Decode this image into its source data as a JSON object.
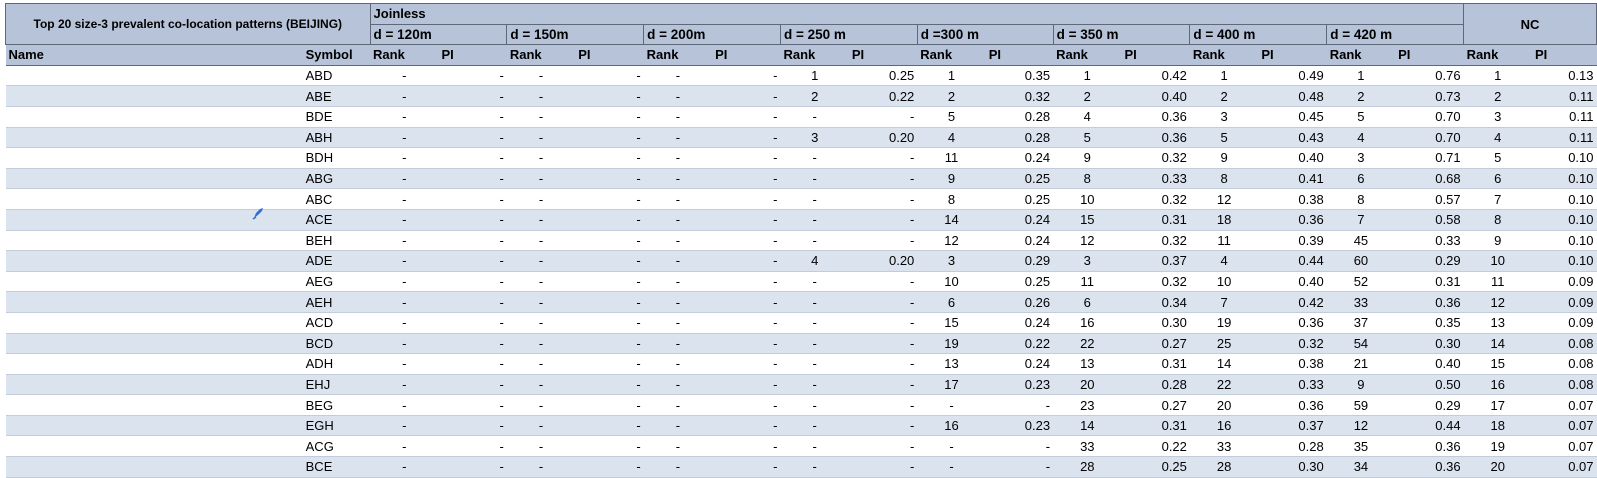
{
  "title": "Top 20 size-3 prevalent co-location patterns (BEIJING)",
  "group_joinless": "Joinless",
  "group_nc": "NC",
  "distances": [
    "d = 120m",
    "d = 150m",
    "d = 200m",
    "d = 250 m",
    "d =300 m",
    "d = 350 m",
    "d = 400 m",
    "d = 420 m"
  ],
  "col_name": "Name",
  "col_symbol": "Symbol",
  "col_rank": "Rank",
  "col_pi": "PI",
  "colors": {
    "header_bg": "#b6c3d8",
    "band_bg": "#dbe3ef",
    "border": "#5e6878",
    "pen_icon": "#2f6fd6"
  },
  "rows": [
    {
      "symbol": "ABD",
      "v": [
        "-",
        "-",
        "-",
        "-",
        "-",
        "-",
        "1",
        "0.25",
        "1",
        "0.35",
        "1",
        "0.42",
        "1",
        "0.49",
        "1",
        "0.76",
        "1",
        "0.13"
      ]
    },
    {
      "symbol": "ABE",
      "v": [
        "-",
        "-",
        "-",
        "-",
        "-",
        "-",
        "2",
        "0.22",
        "2",
        "0.32",
        "2",
        "0.40",
        "2",
        "0.48",
        "2",
        "0.73",
        "2",
        "0.11"
      ]
    },
    {
      "symbol": "BDE",
      "v": [
        "-",
        "-",
        "-",
        "-",
        "-",
        "-",
        "-",
        "-",
        "5",
        "0.28",
        "4",
        "0.36",
        "3",
        "0.45",
        "5",
        "0.70",
        "3",
        "0.11"
      ]
    },
    {
      "symbol": "ABH",
      "v": [
        "-",
        "-",
        "-",
        "-",
        "-",
        "-",
        "3",
        "0.20",
        "4",
        "0.28",
        "5",
        "0.36",
        "5",
        "0.43",
        "4",
        "0.70",
        "4",
        "0.11"
      ]
    },
    {
      "symbol": "BDH",
      "v": [
        "-",
        "-",
        "-",
        "-",
        "-",
        "-",
        "-",
        "-",
        "11",
        "0.24",
        "9",
        "0.32",
        "9",
        "0.40",
        "3",
        "0.71",
        "5",
        "0.10"
      ]
    },
    {
      "symbol": "ABG",
      "v": [
        "-",
        "-",
        "-",
        "-",
        "-",
        "-",
        "-",
        "-",
        "9",
        "0.25",
        "8",
        "0.33",
        "8",
        "0.41",
        "6",
        "0.68",
        "6",
        "0.10"
      ]
    },
    {
      "symbol": "ABC",
      "v": [
        "-",
        "-",
        "-",
        "-",
        "-",
        "-",
        "-",
        "-",
        "8",
        "0.25",
        "10",
        "0.32",
        "12",
        "0.38",
        "8",
        "0.57",
        "7",
        "0.10"
      ]
    },
    {
      "symbol": "ACE",
      "v": [
        "-",
        "-",
        "-",
        "-",
        "-",
        "-",
        "-",
        "-",
        "14",
        "0.24",
        "15",
        "0.31",
        "18",
        "0.36",
        "7",
        "0.58",
        "8",
        "0.10"
      ]
    },
    {
      "symbol": "BEH",
      "v": [
        "-",
        "-",
        "-",
        "-",
        "-",
        "-",
        "-",
        "-",
        "12",
        "0.24",
        "12",
        "0.32",
        "11",
        "0.39",
        "45",
        "0.33",
        "9",
        "0.10"
      ]
    },
    {
      "symbol": "ADE",
      "v": [
        "-",
        "-",
        "-",
        "-",
        "-",
        "-",
        "4",
        "0.20",
        "3",
        "0.29",
        "3",
        "0.37",
        "4",
        "0.44",
        "60",
        "0.29",
        "10",
        "0.10"
      ]
    },
    {
      "symbol": "AEG",
      "v": [
        "-",
        "-",
        "-",
        "-",
        "-",
        "-",
        "-",
        "-",
        "10",
        "0.25",
        "11",
        "0.32",
        "10",
        "0.40",
        "52",
        "0.31",
        "11",
        "0.09"
      ]
    },
    {
      "symbol": "AEH",
      "v": [
        "-",
        "-",
        "-",
        "-",
        "-",
        "-",
        "-",
        "-",
        "6",
        "0.26",
        "6",
        "0.34",
        "7",
        "0.42",
        "33",
        "0.36",
        "12",
        "0.09"
      ]
    },
    {
      "symbol": "ACD",
      "v": [
        "-",
        "-",
        "-",
        "-",
        "-",
        "-",
        "-",
        "-",
        "15",
        "0.24",
        "16",
        "0.30",
        "19",
        "0.36",
        "37",
        "0.35",
        "13",
        "0.09"
      ]
    },
    {
      "symbol": "BCD",
      "v": [
        "-",
        "-",
        "-",
        "-",
        "-",
        "-",
        "-",
        "-",
        "19",
        "0.22",
        "22",
        "0.27",
        "25",
        "0.32",
        "54",
        "0.30",
        "14",
        "0.08"
      ]
    },
    {
      "symbol": "ADH",
      "v": [
        "-",
        "-",
        "-",
        "-",
        "-",
        "-",
        "-",
        "-",
        "13",
        "0.24",
        "13",
        "0.31",
        "14",
        "0.38",
        "21",
        "0.40",
        "15",
        "0.08"
      ]
    },
    {
      "symbol": "EHJ",
      "v": [
        "-",
        "-",
        "-",
        "-",
        "-",
        "-",
        "-",
        "-",
        "17",
        "0.23",
        "20",
        "0.28",
        "22",
        "0.33",
        "9",
        "0.50",
        "16",
        "0.08"
      ]
    },
    {
      "symbol": "BEG",
      "v": [
        "-",
        "-",
        "-",
        "-",
        "-",
        "-",
        "-",
        "-",
        "-",
        "-",
        "23",
        "0.27",
        "20",
        "0.36",
        "59",
        "0.29",
        "17",
        "0.07"
      ]
    },
    {
      "symbol": "EGH",
      "v": [
        "-",
        "-",
        "-",
        "-",
        "-",
        "-",
        "-",
        "-",
        "16",
        "0.23",
        "14",
        "0.31",
        "16",
        "0.37",
        "12",
        "0.44",
        "18",
        "0.07"
      ]
    },
    {
      "symbol": "ACG",
      "v": [
        "-",
        "-",
        "-",
        "-",
        "-",
        "-",
        "-",
        "-",
        "-",
        "-",
        "33",
        "0.22",
        "33",
        "0.28",
        "35",
        "0.36",
        "19",
        "0.07"
      ]
    },
    {
      "symbol": "BCE",
      "v": [
        "-",
        "-",
        "-",
        "-",
        "-",
        "-",
        "-",
        "-",
        "-",
        "-",
        "28",
        "0.25",
        "28",
        "0.30",
        "34",
        "0.36",
        "20",
        "0.07"
      ]
    }
  ]
}
